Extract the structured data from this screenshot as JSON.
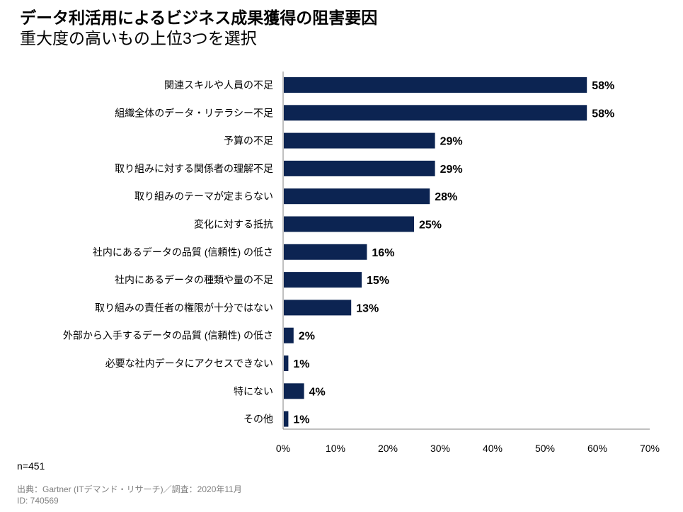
{
  "title": "データ利活用によるビジネス成果獲得の阻害要因",
  "subtitle": "重大度の高いもの上位3つを選択",
  "sample": "n=451",
  "source": "出典：Gartner (ITデマンド・リサーチ)／調査：2020年11月",
  "id": "ID: 740569",
  "chart_data": {
    "type": "bar",
    "orientation": "horizontal",
    "categories": [
      "関連スキルや人員の不足",
      "組織全体のデータ・リテラシー不足",
      "予算の不足",
      "取り組みに対する関係者の理解不足",
      "取り組みのテーマが定まらない",
      "変化に対する抵抗",
      "社内にあるデータの品質 (信頼性) の低さ",
      "社内にあるデータの種類や量の不足",
      "取り組みの責任者の権限が十分ではない",
      "外部から入手するデータの品質 (信頼性) の低さ",
      "必要な社内データにアクセスできない",
      "特にない",
      "その他"
    ],
    "values": [
      58,
      58,
      29,
      29,
      28,
      25,
      16,
      15,
      13,
      2,
      1,
      4,
      1
    ],
    "data_labels": [
      "58%",
      "58%",
      "29%",
      "29%",
      "28%",
      "25%",
      "16%",
      "15%",
      "13%",
      "2%",
      "1%",
      "4%",
      "1%"
    ],
    "xlim": [
      0,
      70
    ],
    "x_ticks": [
      "0%",
      "10%",
      "20%",
      "30%",
      "40%",
      "50%",
      "60%",
      "70%"
    ],
    "grid": false,
    "bar_color": "#0c2452"
  }
}
